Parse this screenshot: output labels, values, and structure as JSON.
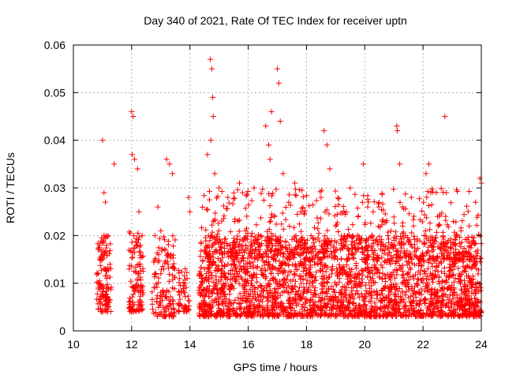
{
  "chart_data": {
    "type": "scatter",
    "title": "Day 340 of 2021, Rate Of TEC Index for receiver uptn",
    "xlabel": "GPS time / hours",
    "ylabel": "ROTI / TECUs",
    "xlim": [
      10,
      24
    ],
    "ylim": [
      0,
      0.06
    ],
    "x_ticks": [
      10,
      12,
      14,
      16,
      18,
      20,
      22,
      24
    ],
    "x_tick_labels": [
      "10",
      "12",
      "14",
      "16",
      "18",
      "20",
      "22",
      "24"
    ],
    "y_ticks": [
      0,
      0.01,
      0.02,
      0.03,
      0.04,
      0.05,
      0.06
    ],
    "y_tick_labels": [
      "0",
      "0.01",
      "0.02",
      "0.03",
      "0.04",
      "0.05",
      "0.06"
    ],
    "grid": true,
    "marker": "+",
    "color": "#ff0000",
    "series": [
      {
        "x": [
          10.85,
          10.9,
          10.95,
          11.0,
          11.05,
          11.1,
          11.15,
          11.0,
          11.05,
          11.1,
          11.0,
          11.05,
          11.4,
          12.0,
          12.05,
          12.02,
          12.1,
          12.2,
          12.25,
          12.3,
          12.2,
          12.25,
          12.3,
          12.35,
          12.8,
          12.9,
          13.0,
          13.1,
          13.2,
          13.3,
          13.4,
          13.0,
          13.35,
          13.4,
          13.8,
          13.9,
          14.0,
          13.85,
          13.95,
          14.5,
          14.6,
          14.7,
          14.75,
          14.78,
          14.8,
          14.72,
          14.8,
          14.85,
          14.9,
          15.0,
          15.1,
          15.3,
          15.5,
          15.7,
          15.9,
          16.0,
          16.2,
          16.4,
          16.6,
          16.8,
          16.7,
          16.75,
          16.9,
          17.0,
          17.05,
          17.1,
          17.2,
          17.4,
          17.6,
          17.8,
          18.0,
          18.2,
          18.5,
          18.6,
          18.7,
          18.8,
          19.0,
          19.2,
          19.5,
          19.8,
          19.95,
          20.1,
          20.3,
          20.6,
          20.9,
          21.1,
          21.12,
          21.2,
          21.3,
          21.6,
          21.9,
          22.1,
          22.2,
          22.3,
          22.5,
          22.75,
          22.8,
          23.0,
          23.3,
          23.6,
          23.8,
          23.95,
          24.0
        ],
        "y": [
          0.012,
          0.018,
          0.009,
          0.015,
          0.02,
          0.007,
          0.011,
          0.04,
          0.029,
          0.027,
          0.016,
          0.013,
          0.035,
          0.046,
          0.045,
          0.037,
          0.036,
          0.034,
          0.025,
          0.014,
          0.009,
          0.012,
          0.018,
          0.006,
          0.02,
          0.026,
          0.012,
          0.008,
          0.036,
          0.035,
          0.033,
          0.021,
          0.016,
          0.009,
          0.008,
          0.011,
          0.025,
          0.005,
          0.028,
          0.013,
          0.037,
          0.057,
          0.055,
          0.049,
          0.045,
          0.04,
          0.023,
          0.033,
          0.017,
          0.03,
          0.012,
          0.028,
          0.015,
          0.031,
          0.021,
          0.01,
          0.03,
          0.016,
          0.043,
          0.046,
          0.039,
          0.036,
          0.024,
          0.055,
          0.052,
          0.044,
          0.033,
          0.018,
          0.031,
          0.025,
          0.012,
          0.015,
          0.028,
          0.042,
          0.039,
          0.034,
          0.022,
          0.018,
          0.03,
          0.012,
          0.035,
          0.026,
          0.016,
          0.023,
          0.009,
          0.043,
          0.042,
          0.035,
          0.022,
          0.028,
          0.015,
          0.033,
          0.035,
          0.018,
          0.024,
          0.045,
          0.029,
          0.014,
          0.021,
          0.011,
          0.027,
          0.032,
          0.031
        ],
        "note": ""
      }
    ],
    "density_clusters": [
      {
        "x_from": 10.8,
        "x_to": 11.3,
        "y_from": 0.004,
        "y_to": 0.02,
        "count": 120
      },
      {
        "x_from": 11.9,
        "x_to": 12.4,
        "y_from": 0.004,
        "y_to": 0.021,
        "count": 110
      },
      {
        "x_from": 12.7,
        "x_to": 13.5,
        "y_from": 0.003,
        "y_to": 0.02,
        "count": 130
      },
      {
        "x_from": 13.6,
        "x_to": 14.0,
        "y_from": 0.004,
        "y_to": 0.014,
        "count": 50
      },
      {
        "x_from": 14.3,
        "x_to": 24.0,
        "y_from": 0.003,
        "y_to": 0.02,
        "count": 2600
      },
      {
        "x_from": 14.4,
        "x_to": 24.0,
        "y_from": 0.015,
        "y_to": 0.03,
        "count": 500
      }
    ]
  }
}
